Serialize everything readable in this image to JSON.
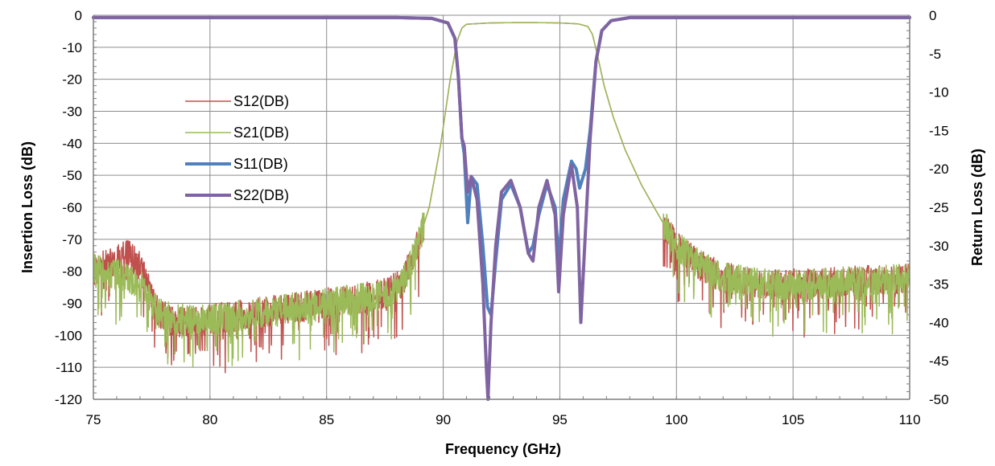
{
  "chart_data": {
    "type": "line",
    "xlabel": "Frequency (GHz)",
    "ylabel_left": "Insertion Loss (dB)",
    "ylabel_right": "Return Loss (dB)",
    "xlim": [
      75,
      110
    ],
    "ylim_left": [
      -120,
      0
    ],
    "ylim_right": [
      -50,
      0
    ],
    "x_ticks": [
      75,
      80,
      85,
      90,
      95,
      100,
      105,
      110
    ],
    "y_ticks_left": [
      0,
      -10,
      -20,
      -30,
      -40,
      -50,
      -60,
      -70,
      -80,
      -90,
      -100,
      -110,
      -120
    ],
    "y_ticks_right": [
      0,
      -5,
      -10,
      -15,
      -20,
      -25,
      -30,
      -35,
      -40,
      -45,
      -50
    ],
    "grid": true,
    "legend_position": "left-center",
    "series": [
      {
        "name": "S12(DB)",
        "axis": "left",
        "color": "#c0504d",
        "width": 1.5,
        "x": [
          75,
          75.5,
          76,
          76.5,
          77,
          77.4,
          77.8,
          78.5,
          80,
          82,
          84,
          86,
          87.5,
          88.2,
          88.8,
          89.4,
          89.9,
          90.3,
          90.6,
          90.8,
          91,
          92,
          93,
          94,
          95,
          95.8,
          96.2,
          96.4,
          96.6,
          96.9,
          97.3,
          97.8,
          98.5,
          99.2,
          100,
          101,
          102,
          104,
          106,
          108,
          110
        ],
        "y": [
          -80,
          -78,
          -76,
          -75,
          -78,
          -86,
          -93,
          -96,
          -95,
          -93,
          -91,
          -89,
          -87,
          -84,
          -74,
          -60,
          -40,
          -20,
          -8,
          -4,
          -2.8,
          -2.4,
          -2.3,
          -2.3,
          -2.4,
          -2.7,
          -3.5,
          -6,
          -12,
          -22,
          -32,
          -42,
          -53,
          -62,
          -72,
          -78,
          -82,
          -84,
          -84,
          -83,
          -82
        ]
      },
      {
        "name": "S21(DB)",
        "axis": "left",
        "color": "#9bbb59",
        "width": 1.5,
        "x": [
          75,
          75.5,
          76,
          76.5,
          77,
          77.4,
          77.8,
          78.5,
          80,
          82,
          84,
          86,
          87.5,
          88.2,
          88.8,
          89.4,
          89.9,
          90.3,
          90.6,
          90.8,
          91,
          92,
          93,
          94,
          95,
          95.8,
          96.2,
          96.4,
          96.6,
          96.9,
          97.3,
          97.8,
          98.5,
          99.2,
          100,
          101,
          102,
          104,
          106,
          108,
          110
        ],
        "y": [
          -79,
          -80,
          -81,
          -82,
          -84,
          -89,
          -93,
          -95,
          -95,
          -93,
          -91,
          -89,
          -87,
          -84,
          -74,
          -60,
          -40,
          -20,
          -8,
          -4,
          -2.8,
          -2.4,
          -2.3,
          -2.3,
          -2.4,
          -2.7,
          -3.5,
          -6,
          -12,
          -22,
          -32,
          -42,
          -53,
          -62,
          -72,
          -78,
          -82,
          -84,
          -84,
          -83,
          -82
        ]
      },
      {
        "name": "S11(DB)",
        "axis": "right",
        "color": "#4f81bd",
        "width": 4,
        "x": [
          75,
          80,
          85,
          88,
          89.5,
          90.2,
          90.5,
          90.65,
          90.8,
          90.9,
          91.05,
          91.2,
          91.45,
          91.7,
          91.9,
          92.05,
          92.25,
          92.5,
          92.9,
          93.3,
          93.65,
          93.85,
          94.1,
          94.45,
          94.8,
          94.95,
          95.15,
          95.5,
          95.7,
          95.85,
          96.1,
          96.3,
          96.55,
          96.8,
          97.2,
          98,
          100,
          105,
          110
        ],
        "y": [
          -0.3,
          -0.3,
          -0.3,
          -0.3,
          -0.4,
          -1,
          -3,
          -8,
          -16,
          -18,
          -27,
          -21,
          -22,
          -30,
          -38,
          -39,
          -32,
          -24,
          -22,
          -25,
          -31,
          -30,
          -26,
          -22,
          -25,
          -32,
          -24,
          -19,
          -20,
          -22.5,
          -20,
          -15,
          -6,
          -2,
          -0.7,
          -0.3,
          -0.3,
          -0.3,
          -0.3
        ]
      },
      {
        "name": "S22(DB)",
        "axis": "right",
        "color": "#8064a2",
        "width": 4,
        "x": [
          75,
          80,
          85,
          88,
          89.5,
          90.2,
          90.5,
          90.65,
          90.8,
          90.9,
          91.05,
          91.2,
          91.45,
          91.7,
          91.85,
          91.92,
          92.05,
          92.25,
          92.5,
          92.9,
          93.3,
          93.65,
          93.85,
          94.1,
          94.45,
          94.8,
          94.95,
          95.15,
          95.5,
          95.75,
          95.9,
          96.1,
          96.3,
          96.55,
          96.8,
          97.2,
          98,
          100,
          105,
          110
        ],
        "y": [
          -0.3,
          -0.3,
          -0.3,
          -0.3,
          -0.4,
          -1,
          -3,
          -8,
          -16,
          -17,
          -23,
          -21,
          -24,
          -35,
          -46,
          -50,
          -40,
          -30,
          -23,
          -21.5,
          -25,
          -31,
          -32,
          -25,
          -21.5,
          -26,
          -36,
          -26,
          -19.5,
          -25,
          -40,
          -28,
          -16,
          -6,
          -2,
          -0.7,
          -0.3,
          -0.3,
          -0.3,
          -0.3
        ]
      }
    ]
  }
}
